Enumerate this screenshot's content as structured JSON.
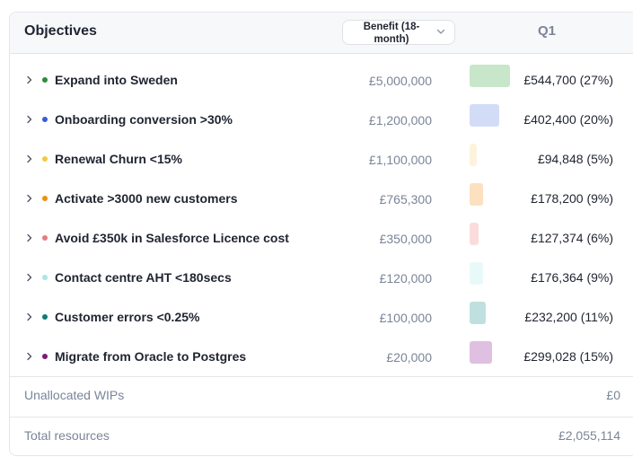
{
  "header": {
    "objectives_label": "Objectives",
    "benefit_label": "Benefit (18-month)",
    "period_label": "Q1"
  },
  "rows": [
    {
      "name": "Expand into Sweden",
      "benefit": "£5,000,000",
      "q1": "£544,700 (27%)",
      "dot_color": "#2e8b3a",
      "bar_color": "#c8e6c9",
      "share_pct": 27
    },
    {
      "name": "Onboarding conversion >30%",
      "benefit": "£1,200,000",
      "q1": "£402,400 (20%)",
      "dot_color": "#3b5bd9",
      "bar_color": "#d3dcf7",
      "share_pct": 20
    },
    {
      "name": "Renewal Churn <15%",
      "benefit": "£1,100,000",
      "q1": "£94,848 (5%)",
      "dot_color": "#f4c842",
      "bar_color": "#fdf3dc",
      "share_pct": 5
    },
    {
      "name": "Activate >3000 new customers",
      "benefit": "£765,300",
      "q1": "£178,200 (9%)",
      "dot_color": "#ef8f14",
      "bar_color": "#fde0bf",
      "share_pct": 9
    },
    {
      "name": "Avoid £350k in Salesforce Licence cost",
      "benefit": "£350,000",
      "q1": "£127,374 (6%)",
      "dot_color": "#e77c7c",
      "bar_color": "#fbdcdc",
      "share_pct": 6
    },
    {
      "name": "Contact centre AHT <180secs",
      "benefit": "£120,000",
      "q1": "£176,364 (9%)",
      "dot_color": "#a9e6e6",
      "bar_color": "#e9f9f9",
      "share_pct": 9
    },
    {
      "name": "Customer errors <0.25%",
      "benefit": "£100,000",
      "q1": "£232,200 (11%)",
      "dot_color": "#0f7b73",
      "bar_color": "#bfe0df",
      "share_pct": 11
    },
    {
      "name": "Migrate from Oracle to Postgres",
      "benefit": "£20,000",
      "q1": "£299,028 (15%)",
      "dot_color": "#7a1a7a",
      "bar_color": "#dfc0e0",
      "share_pct": 15
    }
  ],
  "unallocated": {
    "label": "Unallocated WIPs",
    "value": "£0"
  },
  "total": {
    "label": "Total resources",
    "value": "£2,055,114"
  }
}
